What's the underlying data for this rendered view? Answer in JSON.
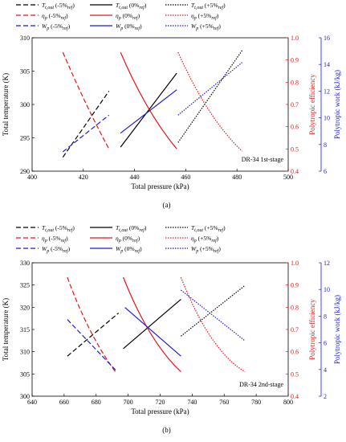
{
  "chart_data": [
    {
      "type": "line",
      "panel_label": "(a)",
      "annotation": "DR-34 1st-stage",
      "xlabel": "Total pressure (kPa)",
      "ylabel_left": "Total temperature (K)",
      "ylabel_right1": "Polytropic efficiency",
      "ylabel_right2": "Polytropic work (kJ/kg)",
      "xlim": [
        400,
        500
      ],
      "xticks": [
        "400",
        "420",
        "440",
        "460",
        "480",
        "500"
      ],
      "ylim_left": [
        290,
        310
      ],
      "yticks_left": [
        "290",
        "295",
        "300",
        "305",
        "310"
      ],
      "ylim_right1": [
        0.4,
        1.0
      ],
      "yticks_right1": [
        "0.4",
        "0.5",
        "0.6",
        "0.7",
        "0.8",
        "0.9",
        "1.0"
      ],
      "ylim_right2": [
        6,
        16
      ],
      "yticks_right2": [
        "6",
        "8",
        "10",
        "12",
        "14",
        "16"
      ],
      "series": [
        {
          "label": "T",
          "sub": "t,out",
          "suffix": " (-5%",
          "sub2": "ref",
          "close": ")",
          "axis": "left",
          "color": "#000000",
          "dash": "6,3",
          "x": [
            412,
            430
          ],
          "y": [
            292.1,
            302.0
          ]
        },
        {
          "label": "T",
          "sub": "t,out",
          "suffix": " (0%",
          "sub2": "ref",
          "close": ")",
          "axis": "left",
          "color": "#000000",
          "dash": "",
          "x": [
            434.5,
            456.5
          ],
          "y": [
            293.6,
            304.7
          ]
        },
        {
          "label": "T",
          "sub": "t,out",
          "suffix": " (+5%",
          "sub2": "ref",
          "close": ")",
          "axis": "left",
          "color": "#000000",
          "dash": "1.5,1.5",
          "x": [
            457,
            482
          ],
          "y": [
            294.3,
            308.1
          ]
        },
        {
          "label": "η",
          "sub": "p",
          "suffix": " (-5%",
          "sub2": "ref",
          "close": ")",
          "axis": "right1",
          "color": "#e8141b",
          "dash": "6,3",
          "x": [
            412,
            421,
            430
          ],
          "y": [
            0.935,
            0.705,
            0.5
          ]
        },
        {
          "label": "η",
          "sub": "p",
          "suffix": " (0%",
          "sub2": "ref",
          "close": ")",
          "axis": "right1",
          "color": "#e8141b",
          "dash": "",
          "x": [
            434.5,
            445,
            456.5
          ],
          "y": [
            0.935,
            0.692,
            0.5
          ]
        },
        {
          "label": "η",
          "sub": "p",
          "suffix": " (+5%",
          "sub2": "ref",
          "close": ")",
          "axis": "right1",
          "color": "#e8141b",
          "dash": "1.5,1.5",
          "x": [
            457,
            469,
            482
          ],
          "y": [
            0.935,
            0.675,
            0.49
          ]
        },
        {
          "label": "W",
          "sub": "p",
          "suffix": " (-5%",
          "sub2": "ref",
          "close": ")",
          "axis": "right2",
          "color": "#1b1bd6",
          "dash": "6,3",
          "x": [
            412,
            430
          ],
          "y": [
            7.45,
            10.2
          ]
        },
        {
          "label": "W",
          "sub": "p",
          "suffix": " (0%",
          "sub2": "ref",
          "close": ")",
          "axis": "right2",
          "color": "#1b1bd6",
          "dash": "",
          "x": [
            434.5,
            456.5
          ],
          "y": [
            8.85,
            12.1
          ]
        },
        {
          "label": "W",
          "sub": "p",
          "suffix": " (+5%",
          "sub2": "ref",
          "close": ")",
          "axis": "right2",
          "color": "#1b1bd6",
          "dash": "1.5,1.5",
          "x": [
            457,
            482
          ],
          "y": [
            10.2,
            14.15
          ]
        }
      ]
    },
    {
      "type": "line",
      "panel_label": "(b)",
      "annotation": "DR-34 2nd-stage",
      "xlabel": "Total pressure (kPa)",
      "ylabel_left": "Total temperature (K)",
      "ylabel_right1": "Polytropic efficiency",
      "ylabel_right2": "Polytropic work (kJ/kg)",
      "xlim": [
        640,
        800
      ],
      "xticks": [
        "640",
        "660",
        "680",
        "700",
        "720",
        "740",
        "760",
        "780",
        "800"
      ],
      "ylim_left": [
        300,
        330
      ],
      "yticks_left": [
        "300",
        "305",
        "310",
        "315",
        "320",
        "325",
        "330"
      ],
      "ylim_right1": [
        0.4,
        1.0
      ],
      "yticks_right1": [
        "0.4",
        "0.5",
        "0.6",
        "0.7",
        "0.8",
        "0.9",
        "1.0"
      ],
      "ylim_right2": [
        2,
        12
      ],
      "yticks_right2": [
        "2",
        "4",
        "6",
        "8",
        "10",
        "12"
      ],
      "series": [
        {
          "label": "T",
          "sub": "t,out",
          "suffix": " (-5%",
          "sub2": "ref",
          "close": ")",
          "axis": "left",
          "color": "#000000",
          "dash": "6,3",
          "x": [
            662,
            694
          ],
          "y": [
            309.0,
            318.7
          ]
        },
        {
          "label": "T",
          "sub": "t,out",
          "suffix": " (0%",
          "sub2": "ref",
          "close": ")",
          "axis": "left",
          "color": "#000000",
          "dash": "",
          "x": [
            697,
            733
          ],
          "y": [
            310.7,
            321.8
          ]
        },
        {
          "label": "T",
          "sub": "t,out",
          "suffix": " (+5%",
          "sub2": "ref",
          "close": ")",
          "axis": "left",
          "color": "#000000",
          "dash": "1.5,1.5",
          "x": [
            733,
            773
          ],
          "y": [
            313.5,
            324.9
          ]
        },
        {
          "label": "η",
          "sub": "p",
          "suffix": " (-5%",
          "sub2": "ref",
          "close": ")",
          "axis": "right1",
          "color": "#e8141b",
          "dash": "6,3",
          "x": [
            662,
            676,
            692
          ],
          "y": [
            0.935,
            0.7,
            0.51
          ]
        },
        {
          "label": "η",
          "sub": "p",
          "suffix": " (0%",
          "sub2": "ref",
          "close": ")",
          "axis": "right1",
          "color": "#e8141b",
          "dash": "",
          "x": [
            697,
            714,
            733
          ],
          "y": [
            0.935,
            0.683,
            0.51
          ]
        },
        {
          "label": "η",
          "sub": "p",
          "suffix": " (+5%",
          "sub2": "ref",
          "close": ")",
          "axis": "right1",
          "color": "#e8141b",
          "dash": "1.5,1.5",
          "x": [
            733,
            752,
            773
          ],
          "y": [
            0.935,
            0.663,
            0.51
          ]
        },
        {
          "label": "W",
          "sub": "p",
          "suffix": " (-5%",
          "sub2": "ref",
          "close": ")",
          "axis": "right2",
          "color": "#1b1bd6",
          "dash": "6,3",
          "x": [
            662,
            693
          ],
          "y": [
            7.75,
            3.85
          ]
        },
        {
          "label": "W",
          "sub": "p",
          "suffix": " (0%",
          "sub2": "ref",
          "close": ")",
          "axis": "right2",
          "color": "#1b1bd6",
          "dash": "",
          "x": [
            698,
            733
          ],
          "y": [
            8.65,
            5.0
          ]
        },
        {
          "label": "W",
          "sub": "p",
          "suffix": " (+5%",
          "sub2": "ref",
          "close": ")",
          "axis": "right2",
          "color": "#1b1bd6",
          "dash": "1.5,1.5",
          "x": [
            733,
            773
          ],
          "y": [
            9.95,
            6.15
          ]
        }
      ]
    }
  ]
}
